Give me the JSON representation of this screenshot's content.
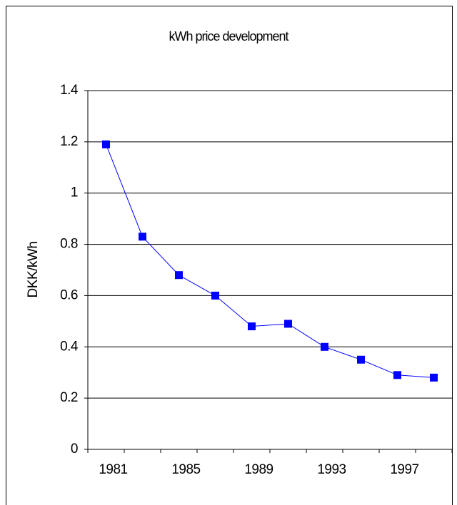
{
  "chart_data": {
    "type": "line",
    "title": "kWh price development",
    "y_label": "DKK/kWh",
    "categories": [
      "1981",
      null,
      "1985",
      null,
      "1989",
      null,
      "1993",
      null,
      "1997",
      null
    ],
    "series": [
      {
        "name": "kWh price",
        "color": "#0000ff",
        "values": [
          1.19,
          0.83,
          0.68,
          0.6,
          0.48,
          0.49,
          0.4,
          0.35,
          0.29,
          0.28
        ]
      }
    ],
    "ylim": [
      0,
      1.4
    ],
    "yticks": [
      0,
      0.2,
      0.4,
      0.6,
      0.8,
      1,
      1.2,
      1.4
    ],
    "grid": true
  }
}
